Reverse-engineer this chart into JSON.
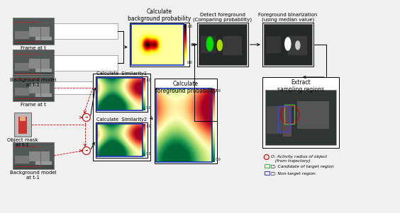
{
  "bg_color": "#f0f0f0",
  "top_row": {
    "frame_t_label": "Frame at t",
    "bg_model_label": "Background model\nat t-1",
    "calc_bg_title": "Calculate\nbackground probability",
    "detect_fg_title": "Detect foreground\n(Comparing probability)",
    "fg_binarize_title": "Foreground binarization\n(using median value)"
  },
  "bottom_row": {
    "frame_t_label": "Frame at t",
    "obj_mask_label": "Object mask\nat t-1",
    "bg_model_label": "Background model\nat t-1",
    "sim1_title": "Calculate  Similarity1",
    "sim2_title": "Calculate  Similarity2",
    "calc_fg_title": "Calculate\nforeground probability"
  },
  "legend": {
    "circle_color": "#cc0000",
    "circle_text1": "O: Activity radius of object",
    "circle_text2": "   (from trajectory)",
    "green_box_text": "□: Candidate of target region",
    "blue_box_text": "□: Non-target region",
    "green_color": "#44bb44",
    "blue_color": "#4444cc"
  },
  "extract_title": "Extract\nsampling regions"
}
